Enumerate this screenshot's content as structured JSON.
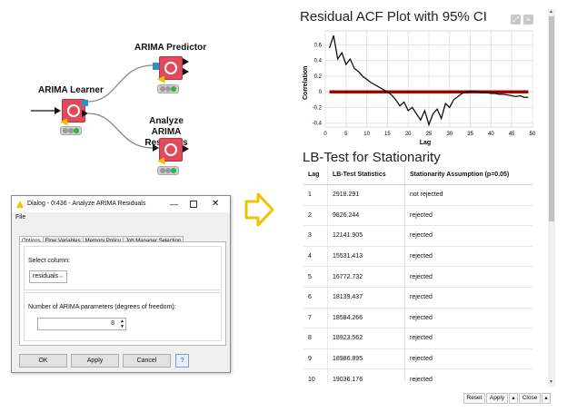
{
  "workflow": {
    "nodes": [
      {
        "title": "ARIMA Learner"
      },
      {
        "title": "ARIMA Predictor"
      },
      {
        "title": "Analyze ARIMA Residuals"
      }
    ]
  },
  "dialog": {
    "title": "Dialog - 0:436 - Analyze ARIMA Residuals",
    "menu_file": "File",
    "tabs": [
      "Options",
      "Flow Variables",
      "Memory Policy",
      "Job Manager Selection"
    ],
    "select_column_label": "Select column:",
    "select_column_value": "residuals",
    "num_params_label": "Number of ARIMA parameters (degrees of freedom):",
    "num_params_value": "8",
    "buttons": {
      "ok": "OK",
      "apply": "Apply",
      "cancel": "Cancel"
    }
  },
  "acf_title": "Residual ACF Plot with 95% CI",
  "lb_title": "LB-Test for Stationarity",
  "lb_table": {
    "headers": [
      "Lag",
      "LB-Test Statistics",
      "Stationarity Assumption (p=0.05)"
    ],
    "rows": [
      [
        "1",
        "2918.291",
        "not rejected"
      ],
      [
        "2",
        "9826.244",
        "rejected"
      ],
      [
        "3",
        "12141.905",
        "rejected"
      ],
      [
        "4",
        "15531.413",
        "rejected"
      ],
      [
        "5",
        "16772.732",
        "rejected"
      ],
      [
        "6",
        "18139.437",
        "rejected"
      ],
      [
        "7",
        "18584.266",
        "rejected"
      ],
      [
        "8",
        "18923.562",
        "rejected"
      ],
      [
        "9",
        "18986.895",
        "rejected"
      ],
      [
        "10",
        "19036.176",
        "rejected"
      ]
    ]
  },
  "footer_buttons": {
    "reset": "Reset",
    "apply": "Apply",
    "close": "Close"
  },
  "colors": {
    "node_red": "#e2495b",
    "port_blue": "#2b90c8",
    "ci_band": "#c00000",
    "arrow_yellow": "#f2c200"
  },
  "chart_data": {
    "type": "line",
    "title": "Residual ACF Plot with 95% CI",
    "xlabel": "Lag",
    "ylabel": "Correlation",
    "xlim": [
      0,
      50
    ],
    "ylim": [
      -0.45,
      0.78
    ],
    "x_ticks": [
      "0",
      "5",
      "10",
      "15",
      "20",
      "25",
      "30",
      "35",
      "40",
      "45",
      "50"
    ],
    "y_ticks": [
      "0.6",
      "0.4",
      "0.2",
      "0",
      "-0.2",
      "-0.4"
    ],
    "grid": true,
    "series": [
      {
        "x": [
          1,
          2,
          3,
          4,
          5,
          6,
          7,
          8,
          9,
          10,
          11,
          12,
          13,
          14,
          15,
          16,
          17,
          18,
          19,
          20,
          21,
          22,
          23,
          24,
          25,
          26,
          27,
          28,
          29,
          30,
          31,
          32,
          33,
          34,
          35,
          36,
          37,
          38,
          39,
          40,
          41,
          42,
          43,
          44,
          45,
          46,
          47,
          48,
          49
        ],
        "values": [
          0.56,
          0.72,
          0.42,
          0.5,
          0.35,
          0.42,
          0.3,
          0.26,
          0.2,
          0.16,
          0.12,
          0.09,
          0.06,
          0.03,
          0.0,
          -0.04,
          -0.1,
          -0.18,
          -0.13,
          -0.24,
          -0.2,
          -0.28,
          -0.36,
          -0.24,
          -0.42,
          -0.28,
          -0.22,
          -0.34,
          -0.15,
          -0.2,
          -0.1,
          -0.06,
          -0.02,
          0.0,
          0.01,
          0.01,
          0.0,
          -0.01,
          -0.01,
          -0.02,
          -0.02,
          -0.03,
          -0.03,
          -0.04,
          -0.05,
          -0.06,
          -0.05,
          -0.07,
          -0.07
        ]
      }
    ],
    "ci_band": [
      -0.02,
      0.02
    ]
  }
}
